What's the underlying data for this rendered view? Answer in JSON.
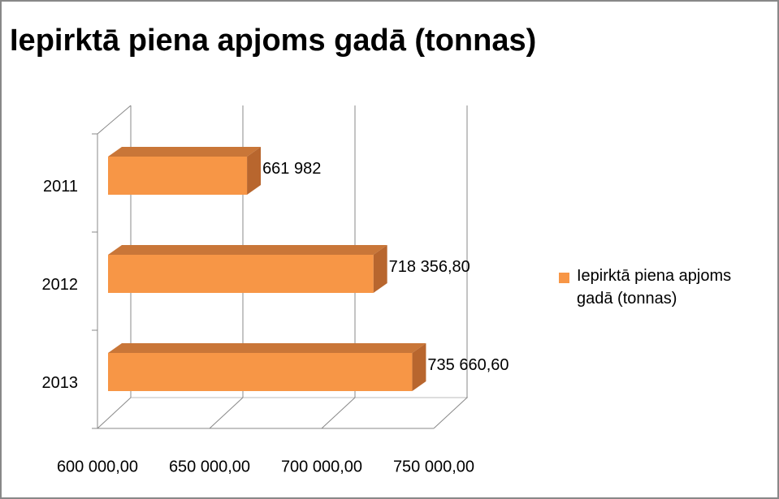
{
  "chart_data": {
    "type": "bar3d_horizontal",
    "title": "Iepirktā piena apjoms gadā (tonnas)",
    "categories": [
      "2011",
      "2012",
      "2013"
    ],
    "series": [
      {
        "name": "Iepirktā piena apjoms gadā (tonnas)",
        "color": "#f79646",
        "values": [
          661982,
          718356.8,
          735660.6
        ],
        "value_labels": [
          "661 982",
          "718 356,80",
          "735 660,60"
        ]
      }
    ],
    "xlim": [
      600000,
      750000
    ],
    "xticks": [
      {
        "value": 600000,
        "label": "600 000,00"
      },
      {
        "value": 650000,
        "label": "650 000,00"
      },
      {
        "value": 700000,
        "label": "700 000,00"
      },
      {
        "value": 750000,
        "label": "750 000,00"
      }
    ],
    "grid": true,
    "legend": "right"
  }
}
